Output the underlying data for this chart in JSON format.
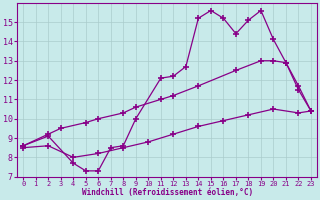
{
  "xlabel": "Windchill (Refroidissement éolien,°C)",
  "background_color": "#c8eaea",
  "line_color": "#880088",
  "grid_color": "#aacccc",
  "xlim": [
    -0.5,
    23.5
  ],
  "ylim": [
    7,
    16
  ],
  "xticks": [
    0,
    1,
    2,
    3,
    4,
    5,
    6,
    7,
    8,
    9,
    10,
    11,
    12,
    13,
    14,
    15,
    16,
    17,
    18,
    19,
    20,
    21,
    22,
    23
  ],
  "yticks": [
    7,
    8,
    9,
    10,
    11,
    12,
    13,
    14,
    15
  ],
  "line1_x": [
    0,
    2,
    4,
    5,
    6,
    7,
    8,
    9,
    11,
    12,
    13,
    14,
    15,
    16,
    17,
    18,
    19,
    20,
    21,
    22,
    23
  ],
  "line1_y": [
    8.6,
    9.1,
    7.7,
    7.3,
    7.3,
    8.5,
    8.6,
    10.0,
    12.1,
    12.2,
    12.7,
    15.2,
    15.6,
    15.2,
    14.4,
    15.1,
    15.6,
    14.1,
    12.9,
    11.5,
    10.4
  ],
  "line2_x": [
    0,
    2,
    3,
    5,
    6,
    8,
    9,
    11,
    12,
    14,
    17,
    19,
    20,
    21,
    22,
    23
  ],
  "line2_y": [
    8.6,
    9.2,
    9.5,
    9.8,
    10.0,
    10.3,
    10.6,
    11.0,
    11.2,
    11.7,
    12.5,
    13.0,
    13.0,
    12.9,
    11.7,
    10.4
  ],
  "line3_x": [
    0,
    2,
    4,
    6,
    8,
    10,
    12,
    14,
    16,
    18,
    20,
    22,
    23
  ],
  "line3_y": [
    8.5,
    8.6,
    8.0,
    8.2,
    8.5,
    8.8,
    9.2,
    9.6,
    9.9,
    10.2,
    10.5,
    10.3,
    10.4
  ]
}
